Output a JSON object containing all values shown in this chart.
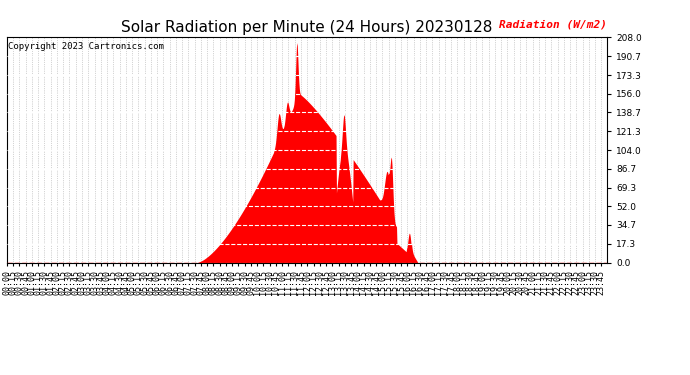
{
  "title": "Solar Radiation per Minute (24 Hours) 20230128",
  "ylabel": "Radiation (W/m2)",
  "copyright_text": "Copyright 2023 Cartronics.com",
  "bar_color": "#ff0000",
  "background_color": "#ffffff",
  "zero_line_color": "#ff0000",
  "yticks": [
    0.0,
    17.3,
    34.7,
    52.0,
    69.3,
    86.7,
    104.0,
    121.3,
    138.7,
    156.0,
    173.3,
    190.7,
    208.0
  ],
  "ylim": [
    0.0,
    208.0
  ],
  "title_fontsize": 11,
  "ylabel_fontsize": 8,
  "tick_fontsize": 6,
  "copyright_fontsize": 6.5,
  "figsize": [
    6.9,
    3.75
  ],
  "dpi": 100
}
